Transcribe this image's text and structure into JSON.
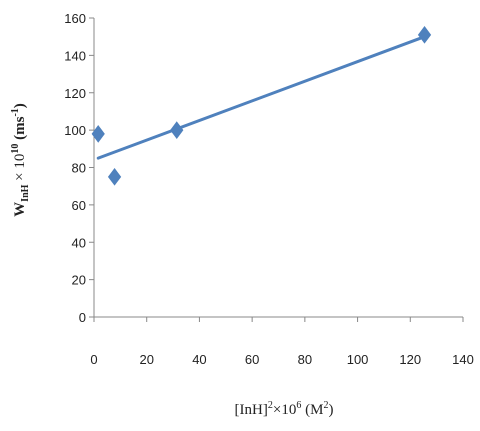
{
  "chart_data": {
    "type": "scatter",
    "title": "",
    "xlabel": "[InH]²×10⁶ (M²)",
    "ylabel": "W InH × 10¹⁰ (ms⁻¹)",
    "xlim": [
      0,
      140
    ],
    "ylim": [
      0,
      160
    ],
    "x_ticks": [
      0,
      20,
      40,
      60,
      80,
      100,
      120,
      140
    ],
    "y_ticks": [
      0,
      20,
      40,
      60,
      80,
      100,
      120,
      140,
      160
    ],
    "grid": false,
    "legend": "none",
    "series": [
      {
        "marker": "diamond",
        "color": "#4F81BD",
        "points": [
          {
            "x": 1.6,
            "y": 98
          },
          {
            "x": 7.8,
            "y": 75
          },
          {
            "x": 31.4,
            "y": 100
          },
          {
            "x": 125.4,
            "y": 151
          }
        ]
      }
    ],
    "trendline": {
      "type": "linear",
      "color": "#4F81BD",
      "x_range": [
        1.6,
        125.4
      ],
      "y_values": [
        85,
        150
      ]
    }
  }
}
